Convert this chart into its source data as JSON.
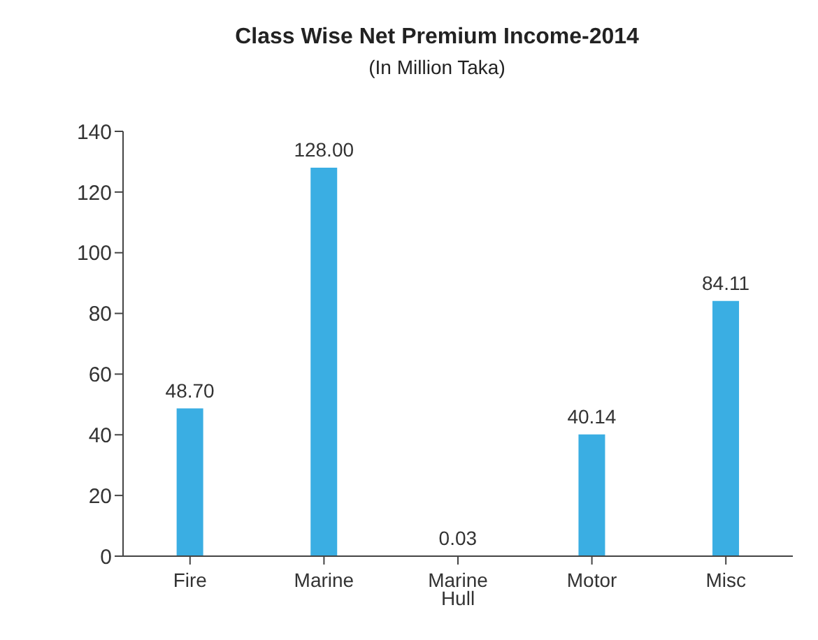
{
  "chart_data": {
    "type": "bar",
    "title": "Class Wise Net Premium Income-2014",
    "subtitle": "(In Million Taka)",
    "categories": [
      "Fire",
      "Marine",
      "Marine Hull",
      "Motor",
      "Misc"
    ],
    "values": [
      48.7,
      128.0,
      0.03,
      40.14,
      84.11
    ],
    "value_labels": [
      "48.70",
      "128.00",
      "0.03",
      "40.14",
      "84.11"
    ],
    "color": "#3aaee3",
    "ylim": [
      0,
      140
    ],
    "yticks": [
      0,
      20,
      40,
      60,
      80,
      100,
      120,
      140
    ],
    "grid": false
  }
}
